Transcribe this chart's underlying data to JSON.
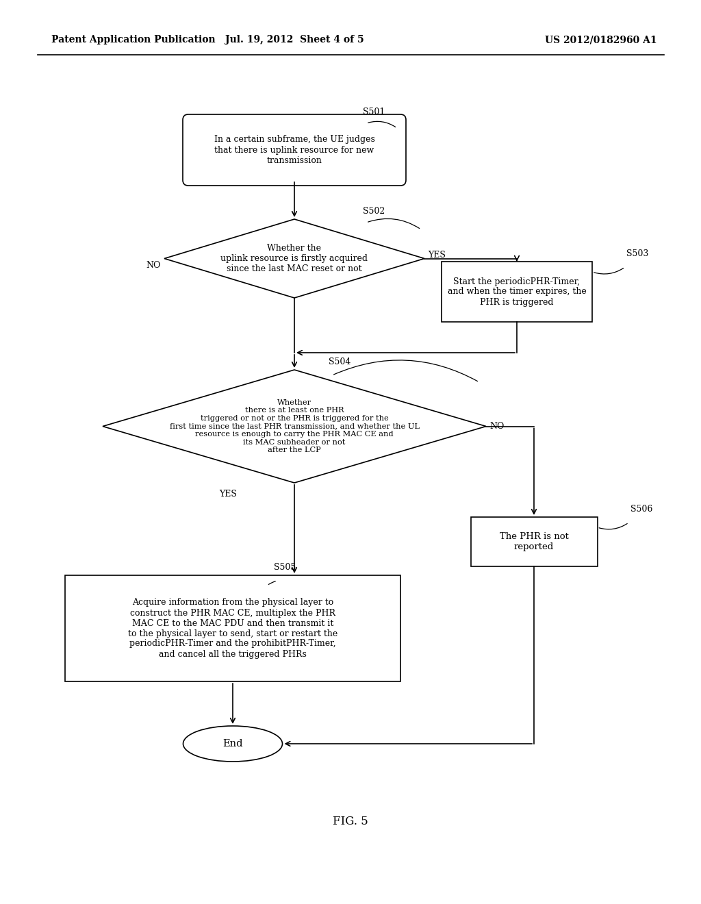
{
  "bg_color": "#ffffff",
  "header_left": "Patent Application Publication",
  "header_center": "Jul. 19, 2012  Sheet 4 of 5",
  "header_right": "US 2012/0182960 A1",
  "fig_label": "FIG. 5",
  "nodes": {
    "S501_label": "S501",
    "S501_text": "In a certain subframe, the UE judges\nthat there is uplink resource for new\ntransmission",
    "S502_label": "S502",
    "S502_text": "Whether the\nuplink resource is firstly acquired\nsince the last MAC reset or not",
    "S503_label": "S503",
    "S503_text": "Start the periodicPHR-Timer,\nand when the timer expires, the\nPHR is triggered",
    "S504_label": "S504",
    "S504_text": "Whether\nthere is at least one PHR\ntriggered or not or the PHR is triggered for the\nfirst time since the last PHR transmission, and whether the UL\nresource is enough to carry the PHR MAC CE and\nits MAC subheader or not\nafter the LCP",
    "S505_label": "S505",
    "S505_text": "Acquire information from the physical layer to\nconstruct the PHR MAC CE, multiplex the PHR\nMAC CE to the MAC PDU and then transmit it\nto the physical layer to send, start or restart the\nperiodicPHR-Timer and the prohibitPHR-Timer,\nand cancel all the triggered PHRs",
    "S506_label": "S506",
    "S506_text": "The PHR is not\nreported",
    "End_text": "End"
  },
  "yes_label": "YES",
  "no_label": "NO",
  "line_color": "#000000",
  "text_color": "#000000"
}
